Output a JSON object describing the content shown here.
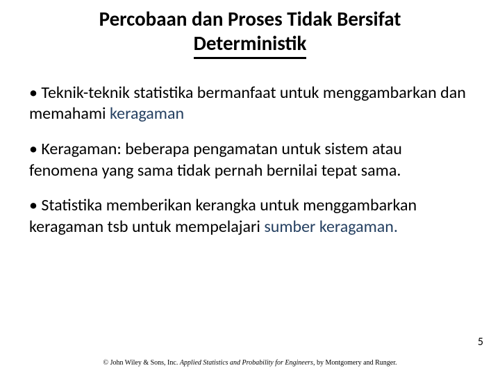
{
  "title": {
    "line1": "Percobaan dan Proses Tidak Bersifat",
    "line2": "Deterministik",
    "fontsize": 29,
    "color": "#000000",
    "underline_width": 3
  },
  "bullets": [
    {
      "marker": "•",
      "pre": " Teknik-teknik statistika bermanfaat untuk menggambarkan dan memahami ",
      "emph": "keragaman",
      "post": ""
    },
    {
      "marker": "•",
      "pre": " Keragaman: beberapa pengamatan untuk sistem atau fenomena yang sama tidak pernah bernilai tepat sama.",
      "emph": "",
      "post": ""
    },
    {
      "marker": "•",
      "pre": " Statistika memberikan kerangka untuk menggambarkan keragaman tsb untuk mempelajari ",
      "emph": "sumber keragaman.",
      "post": ""
    }
  ],
  "body_fontsize": 24,
  "emph_color": "#254061",
  "pagenum": "5",
  "footer": {
    "lead": "© John Wiley & Sons, Inc.   ",
    "italic": "Applied Statistics and Probability for Engineers",
    "tail": ", by Montgomery and Runger."
  },
  "background_color": "#ffffff"
}
